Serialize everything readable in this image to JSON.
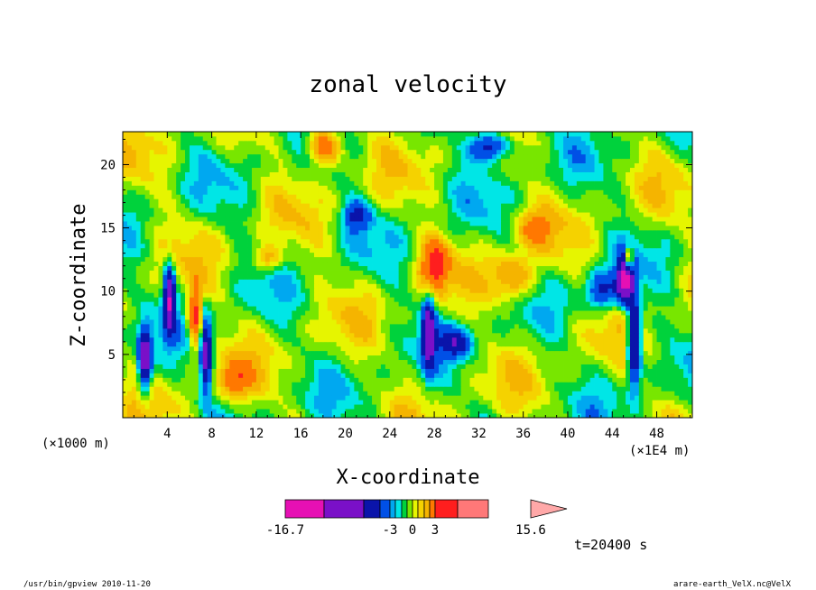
{
  "chart_data": {
    "type": "heatmap",
    "title": "zonal velocity",
    "xlabel": "X-coordinate",
    "ylabel": "Z-coordinate",
    "x_unit_left": "(×1000 m)",
    "x_unit_right": "(×1E4 m)",
    "x_ticks": [
      4,
      8,
      12,
      16,
      20,
      24,
      28,
      32,
      36,
      40,
      44,
      48
    ],
    "y_ticks": [
      5,
      10,
      15,
      20
    ],
    "xlim": [
      0,
      51.2
    ],
    "ylim": [
      0,
      22.6
    ],
    "colorbar": {
      "labels": [
        "-16.7",
        "-3",
        "0",
        "3",
        "15.6"
      ],
      "levels": [
        -16.7,
        -12,
        -7.5,
        -5,
        -3,
        -2,
        -1,
        0,
        1,
        2,
        3,
        4.5,
        7,
        10.5,
        15.6
      ],
      "colors": [
        "#e610b4",
        "#7a10c8",
        "#0a14aa",
        "#0050e6",
        "#00a8f0",
        "#00e6e6",
        "#00d23c",
        "#78e600",
        "#e6f500",
        "#f5d200",
        "#f5b400",
        "#ff7800",
        "#ff1e1e",
        "#ff7878",
        "#ffa8a8"
      ]
    },
    "time_label": "t=20400 s",
    "color_hotspots": [
      {
        "x": 2.0,
        "z": 4.5,
        "v": -11,
        "sx": 0.6,
        "sz": 2.5
      },
      {
        "x": 4.2,
        "z": 9.5,
        "v": -12,
        "sx": 0.5,
        "sz": 2.5
      },
      {
        "x": 7.5,
        "z": 5.0,
        "v": -10,
        "sx": 0.5,
        "sz": 3.0
      },
      {
        "x": 27.5,
        "z": 7.0,
        "v": -9,
        "sx": 0.6,
        "sz": 3.0
      },
      {
        "x": 45.2,
        "z": 11.0,
        "v": -14,
        "sx": 0.7,
        "sz": 1.8
      },
      {
        "x": 46.0,
        "z": 6.0,
        "v": -11,
        "sx": 0.6,
        "sz": 3.5
      },
      {
        "x": 33.0,
        "z": 21.5,
        "v": -8,
        "sx": 1.8,
        "sz": 1.2
      },
      {
        "x": 21.0,
        "z": 16.0,
        "v": -5,
        "sx": 1.2,
        "sz": 1.2
      },
      {
        "x": 43.0,
        "z": 10.0,
        "v": -6,
        "sx": 1.5,
        "sz": 1.5
      },
      {
        "x": 30.0,
        "z": 6.0,
        "v": -6,
        "sx": 1.5,
        "sz": 1.2
      },
      {
        "x": 6.5,
        "z": 8.0,
        "v": 8,
        "sx": 0.6,
        "sz": 2.5
      },
      {
        "x": 18.0,
        "z": 21.5,
        "v": 8,
        "sx": 1.5,
        "sz": 1.5
      },
      {
        "x": 28.0,
        "z": 12.0,
        "v": 7,
        "sx": 1.2,
        "sz": 2.0
      },
      {
        "x": 45.5,
        "z": 12.5,
        "v": 10,
        "sx": 0.4,
        "sz": 1.0
      },
      {
        "x": 35.0,
        "z": 11.0,
        "v": 5,
        "sx": 2.0,
        "sz": 2.0
      },
      {
        "x": 10.0,
        "z": 3.0,
        "v": 5,
        "sx": 1.5,
        "sz": 1.5
      },
      {
        "x": 13.0,
        "z": 12.5,
        "v": 4,
        "sx": 1.2,
        "sz": 1.0
      },
      {
        "x": 37.0,
        "z": 15.0,
        "v": 4,
        "sx": 1.5,
        "sz": 1.2
      }
    ]
  },
  "footer": {
    "left": "/usr/bin/gpview  2010-11-20",
    "right": "arare-earth_VelX.nc@VelX"
  }
}
